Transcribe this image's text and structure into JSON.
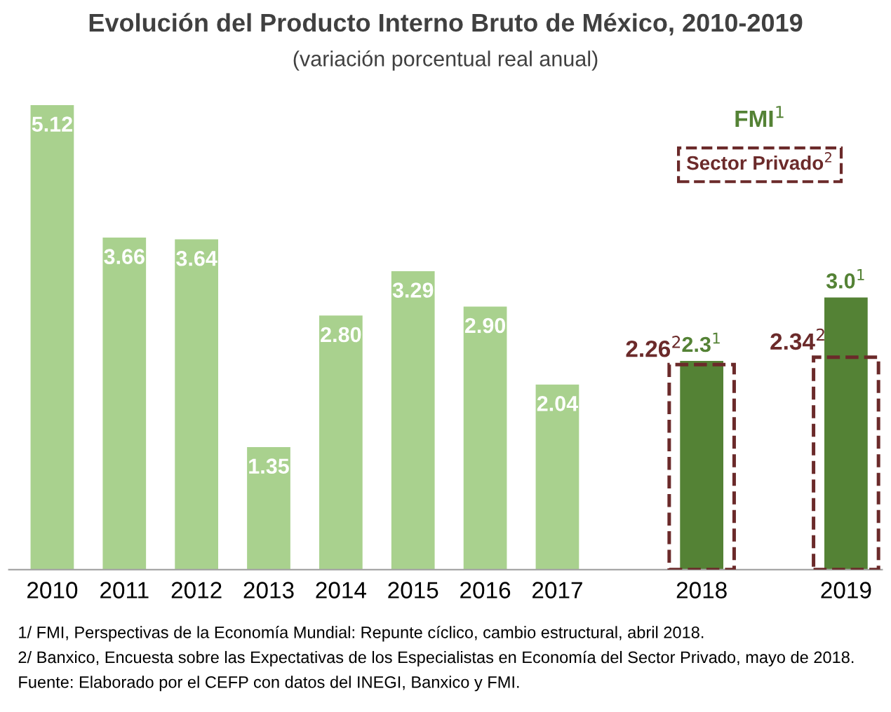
{
  "chart_data": {
    "type": "bar",
    "title": "Evolución del Producto Interno Bruto de México, 2010-2019",
    "subtitle": "(variación porcentual real anual)",
    "categories": [
      "2010",
      "2011",
      "2012",
      "2013",
      "2014",
      "2015",
      "2016",
      "2017",
      null,
      "2018",
      null,
      "2019"
    ],
    "series": [
      {
        "color": "#a9d18e",
        "values": [
          5.12,
          3.66,
          3.64,
          1.35,
          2.8,
          3.29,
          2.9,
          2.04,
          null,
          null,
          null,
          null
        ],
        "value_labels": [
          "5.12",
          "3.66",
          "3.64",
          "1.35",
          "2.80",
          "3.29",
          "2.90",
          "2.04",
          null,
          null,
          null,
          null
        ]
      },
      {
        "name": "FMI$^{1}$",
        "color": "#548235",
        "values": [
          null,
          null,
          null,
          null,
          null,
          null,
          null,
          null,
          null,
          2.3,
          null,
          3.0
        ],
        "value_labels": [
          null,
          null,
          null,
          null,
          null,
          null,
          null,
          null,
          null,
          "2.3$^{1}$",
          null,
          "3.0$^{1}$"
        ]
      },
      {
        "name": "Sector Privado$^{2}$",
        "color": "#6b2a2a",
        "line_style": "dashed",
        "values": [
          null,
          null,
          null,
          null,
          null,
          null,
          null,
          null,
          null,
          2.26,
          null,
          2.34
        ],
        "value_labels": [
          null,
          null,
          null,
          null,
          null,
          null,
          null,
          null,
          null,
          "2.26$^{2}$",
          null,
          "2.34$^{2}$"
        ]
      }
    ],
    "legend": "top right",
    "grid": false,
    "annotations": [
      "1/ FMI, Perspectivas de la Economía Mundial: Repunte cíclico, cambio estructural, abril 2018.",
      "2/ Banxico, Encuesta sobre las Expectativas de los Especialistas en Economía del Sector Privado, mayo de 2018.",
      "Fuente: Elaborado por el CEFP con datos del INEGI, Banxico y FMI."
    ]
  }
}
